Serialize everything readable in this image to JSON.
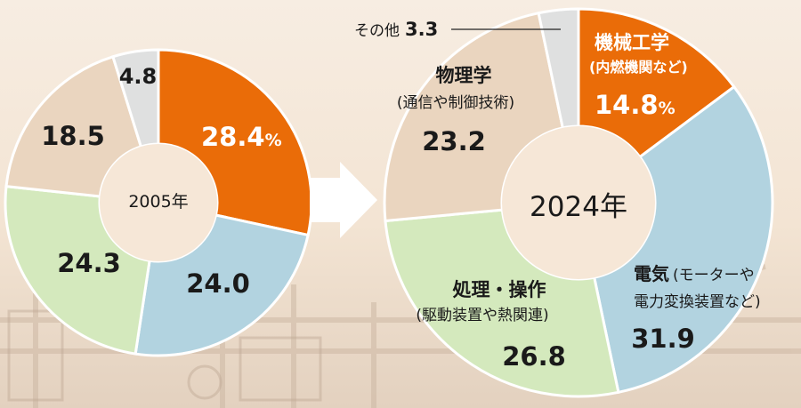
{
  "colors": {
    "mechanical": "#ea6c08",
    "electrical": "#b2d3e0",
    "control": "#d4e9bd",
    "physics": "#ead5bf",
    "other": "#dfe0e0",
    "center": "#f6e7d7",
    "text": "#1a1a1a",
    "white": "#ffffff"
  },
  "chart_data": [
    {
      "type": "pie",
      "title": "2005年",
      "slices": [
        {
          "key": "mechanical",
          "value": 28.4,
          "label": "28.4",
          "unit": "%"
        },
        {
          "key": "electrical",
          "value": 24.0,
          "label": "24.0"
        },
        {
          "key": "control",
          "value": 24.3,
          "label": "24.3"
        },
        {
          "key": "physics",
          "value": 18.5,
          "label": "18.5"
        },
        {
          "key": "other",
          "value": 4.8,
          "label": "4.8"
        }
      ]
    },
    {
      "type": "pie",
      "title": "2024年",
      "slices": [
        {
          "key": "mechanical",
          "value": 14.8,
          "label": "14.8",
          "unit": "%",
          "name": "機械工学",
          "sub": "(内燃機関など)"
        },
        {
          "key": "electrical",
          "value": 31.9,
          "label": "31.9",
          "name": "電気",
          "sub": "(モーターや",
          "sub2": "電力変換装置など)"
        },
        {
          "key": "control",
          "value": 26.8,
          "label": "26.8",
          "name": "処理・操作",
          "sub": "(駆動装置や熱関連)"
        },
        {
          "key": "physics",
          "value": 23.2,
          "label": "23.2",
          "name": "物理学",
          "sub": "(通信や制御技術)"
        },
        {
          "key": "other",
          "value": 3.3,
          "label": "3.3",
          "name": "その他"
        }
      ]
    }
  ]
}
